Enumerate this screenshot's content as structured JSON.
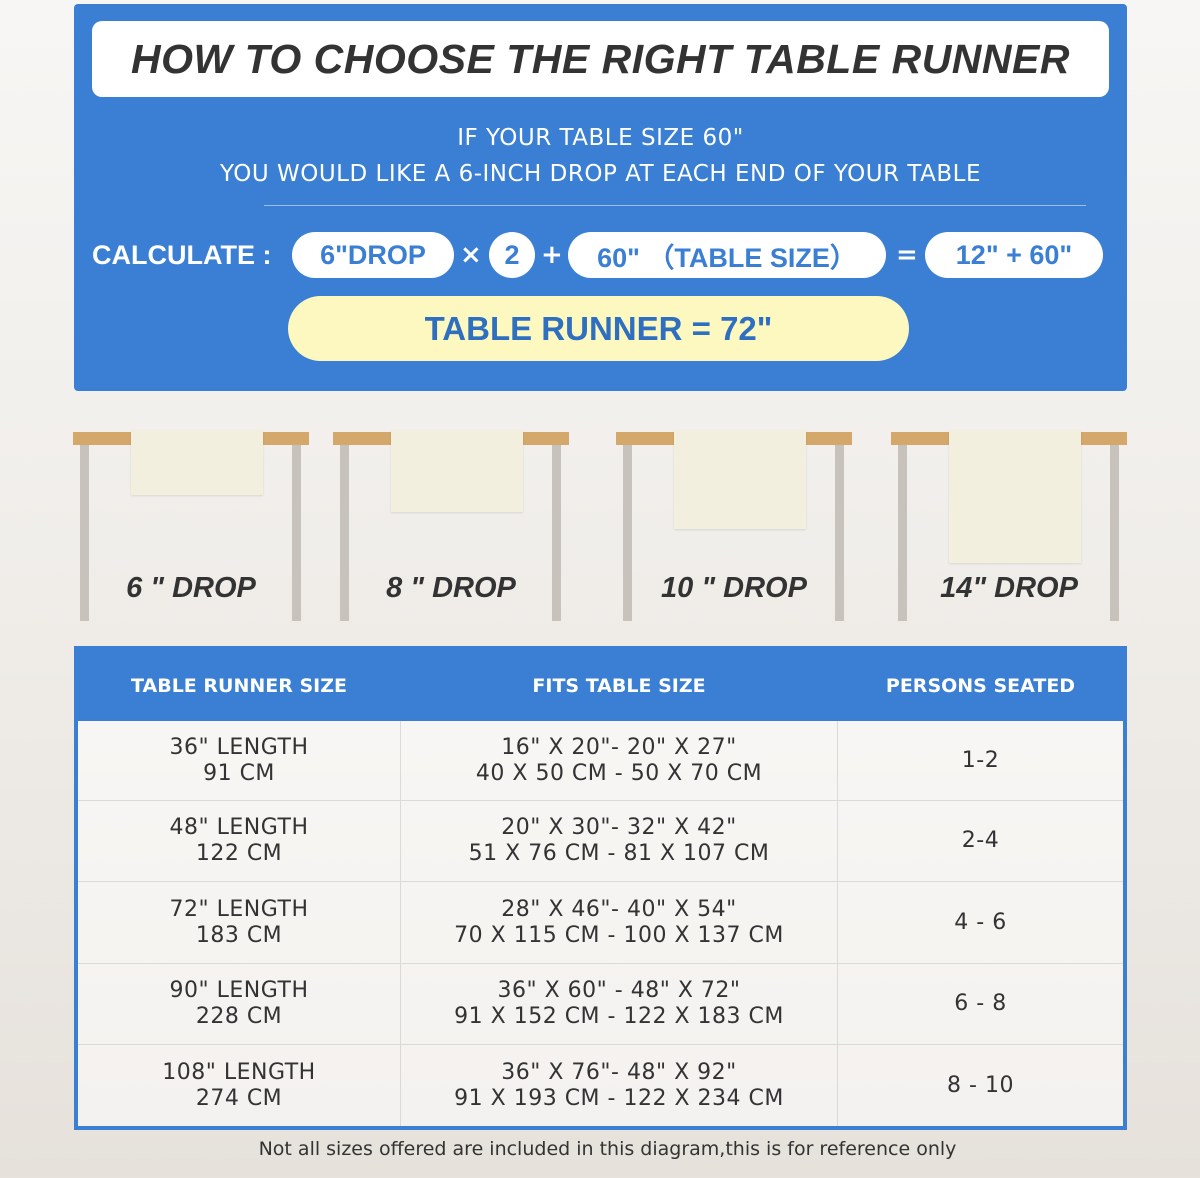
{
  "header": {
    "title": "HOW TO CHOOSE THE RIGHT TABLE RUNNER",
    "line1": "IF YOUR TABLE SIZE 60\"",
    "line2": "YOU WOULD LIKE A 6-INCH DROP AT EACH END OF YOUR TABLE"
  },
  "calculation": {
    "label": "CALCULATE :",
    "drop": "6\"DROP",
    "times": "×",
    "multiplier": "2",
    "plus": "+",
    "table_size": "60\" （TABLE SIZE）",
    "equals": "=",
    "sum": "12\" + 60\"",
    "result": "TABLE RUNNER = 72\""
  },
  "drops": [
    {
      "label": "6 \" DROP",
      "inches": 6
    },
    {
      "label": "8 \" DROP",
      "inches": 8
    },
    {
      "label": "10 \" DROP",
      "inches": 10
    },
    {
      "label": "14\" DROP",
      "inches": 14
    }
  ],
  "colors": {
    "accent": "#3a7fd3",
    "highlight": "#fdf8c0",
    "table_top": "#d4a86a",
    "runner": "#f3efdf"
  },
  "size_table": {
    "headers": [
      "TABLE RUNNER SIZE",
      "FITS TABLE SIZE",
      "PERSONS SEATED"
    ],
    "rows": [
      {
        "size": [
          "36\" LENGTH",
          "91 CM"
        ],
        "fits": [
          "16\" X 20\"- 20\" X 27\"",
          "40 X 50 CM - 50 X 70 CM"
        ],
        "persons": "1-2"
      },
      {
        "size": [
          "48\" LENGTH",
          "122 CM"
        ],
        "fits": [
          "20\" X 30\"- 32\" X 42\"",
          "51 X 76 CM - 81 X 107 CM"
        ],
        "persons": "2-4"
      },
      {
        "size": [
          "72\" LENGTH",
          "183 CM"
        ],
        "fits": [
          "28\" X 46\"- 40\" X 54\"",
          "70 X 115 CM - 100 X 137 CM"
        ],
        "persons": "4 - 6"
      },
      {
        "size": [
          "90\" LENGTH",
          "228 CM"
        ],
        "fits": [
          "36\" X 60\" - 48\" X 72\"",
          "91 X 152 CM - 122 X 183 CM"
        ],
        "persons": "6 - 8"
      },
      {
        "size": [
          "108\" LENGTH",
          "274 CM"
        ],
        "fits": [
          "36\" X 76\"- 48\" X 92\"",
          "91 X 193 CM - 122 X 234 CM"
        ],
        "persons": "8 - 10"
      }
    ]
  },
  "footer": "Not all sizes offered are included in this diagram,this is for reference only"
}
